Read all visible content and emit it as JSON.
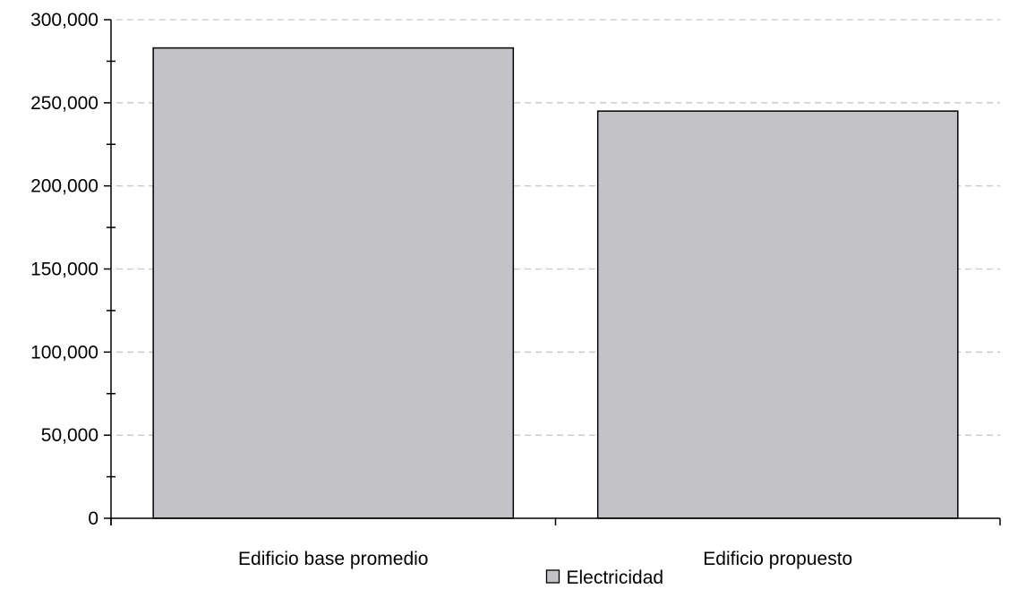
{
  "chart_data": {
    "type": "bar",
    "title": "",
    "xlabel": "",
    "ylabel": "",
    "categories": [
      "Edificio base promedio",
      "Edificio propuesto"
    ],
    "series": [
      {
        "name": "Electricidad",
        "values": [
          283000,
          245000
        ],
        "color": "#c3c2c7"
      }
    ],
    "ylim": [
      0,
      300000
    ],
    "y_major_ticks": [
      0,
      50000,
      100000,
      150000,
      200000,
      250000,
      300000
    ],
    "y_tick_labels": [
      "0",
      "50,000",
      "100,000",
      "150,000",
      "200,000",
      "250,000",
      "300,000"
    ],
    "y_minor_step": 25000,
    "grid": true,
    "grid_style": "dashed",
    "grid_color": "#c8c8c8",
    "legend_position": "bottom-center",
    "bar_outline_color": "#000000"
  }
}
